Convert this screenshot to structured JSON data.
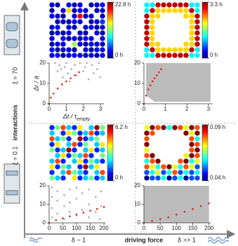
{
  "labels": {
    "y_axis": "interactions",
    "top": "ξ = 70",
    "bottom": "ξ = 0.1",
    "x_left": "δ ~ 1",
    "x_axis": "driving force",
    "x_right": "δ >> 1"
  },
  "chart_data": [
    {
      "type": "heatmap",
      "colormap": "jet",
      "clim": [
        0,
        22.8
      ],
      "cticks": [
        {
          "value": 0,
          "label": "0 h"
        },
        {
          "value": 22.8,
          "label": "22.8 h"
        }
      ],
      "values": [
        [
          2,
          1,
          null,
          3,
          1,
          2,
          null,
          1,
          2,
          3
        ],
        [
          1,
          null,
          2,
          15,
          1,
          3,
          2,
          null,
          1,
          2
        ],
        [
          3,
          2,
          1,
          null,
          2,
          20,
          1,
          2,
          null,
          1
        ],
        [
          null,
          1,
          2,
          1,
          3,
          2,
          null,
          1,
          2,
          4
        ],
        [
          2,
          3,
          null,
          2,
          1,
          null,
          2,
          3,
          1,
          2
        ],
        [
          1,
          2,
          1,
          3,
          null,
          2,
          1,
          null,
          2,
          1
        ],
        [
          2,
          null,
          3,
          1,
          2,
          1,
          3,
          2,
          null,
          2
        ],
        [
          1,
          2,
          2,
          null,
          12,
          2,
          1,
          3,
          2,
          1
        ],
        [
          3,
          1,
          2,
          2,
          1,
          null,
          2,
          1,
          3,
          2
        ],
        [
          2,
          3,
          1,
          2,
          3,
          2,
          1,
          2,
          1,
          3
        ]
      ]
    },
    {
      "type": "scatter",
      "xlim": [
        0,
        3.2
      ],
      "ylim": [
        0,
        20
      ],
      "xticks": [
        0,
        1,
        2,
        3
      ],
      "yticks": [
        0,
        10,
        20
      ],
      "y_label": "Δr / a",
      "x_label": "Δt / τ",
      "x_label_sub": "empty",
      "series": [
        {
          "kind": "points",
          "color": "#aaaaaa",
          "x": [
            0.35,
            0.5,
            0.6,
            0.8,
            0.9,
            1.0,
            1.1,
            1.3,
            1.5,
            1.6,
            1.8,
            2.0,
            2.1,
            2.3,
            2.5,
            2.6,
            2.8,
            2.9,
            3.0,
            1.2,
            2.2,
            0.7
          ],
          "values": [
            20,
            16,
            19,
            13,
            18,
            20,
            15,
            17,
            19,
            14,
            20,
            16,
            18,
            12,
            19,
            15,
            17,
            20,
            13,
            11,
            20,
            17
          ]
        },
        {
          "kind": "points",
          "color": "#e0201b",
          "x": [
            0,
            0.1,
            0.25,
            0.5,
            0.75,
            1,
            1.25,
            1.5,
            1.75
          ],
          "values": [
            0,
            3,
            5,
            7.5,
            9.5,
            11,
            12.5,
            14,
            15.5
          ]
        }
      ]
    },
    {
      "type": "heatmap",
      "colormap": "jet",
      "clim": [
        0,
        3.3
      ],
      "cticks": [
        {
          "value": 0,
          "label": "0 h"
        },
        {
          "value": 3.3,
          "label": "3.3 h"
        }
      ],
      "values": [
        [
          1.2,
          1.2,
          3.1,
          3.1,
          3.1,
          3.1,
          3.1,
          3.1,
          1.2,
          1.2
        ],
        [
          1.2,
          3.1,
          2.2,
          2.2,
          2.2,
          2.2,
          2.2,
          2.2,
          3.1,
          1.2
        ],
        [
          3.1,
          2.2,
          2.2,
          null,
          null,
          null,
          null,
          2.2,
          2.2,
          3.1
        ],
        [
          3.1,
          2.2,
          null,
          null,
          null,
          null,
          null,
          null,
          2.2,
          3.1
        ],
        [
          3.1,
          2.2,
          null,
          null,
          null,
          null,
          null,
          null,
          2.2,
          3.1
        ],
        [
          3.1,
          2.2,
          null,
          null,
          null,
          null,
          null,
          null,
          2.2,
          3.1
        ],
        [
          3.1,
          2.2,
          null,
          null,
          null,
          null,
          null,
          null,
          2.2,
          3.1
        ],
        [
          3.1,
          2.2,
          2.2,
          null,
          null,
          null,
          null,
          2.2,
          2.2,
          3.1
        ],
        [
          1.2,
          3.1,
          2.2,
          2.2,
          2.2,
          2.2,
          2.2,
          2.2,
          3.1,
          1.2
        ],
        [
          1.2,
          1.2,
          3.1,
          3.1,
          3.1,
          3.1,
          3.1,
          3.1,
          1.2,
          1.2
        ]
      ]
    },
    {
      "type": "scatter",
      "xlim": [
        0,
        3.2
      ],
      "ylim": [
        0,
        20
      ],
      "xticks": [
        0,
        1,
        2,
        3
      ],
      "yticks": [
        0,
        10,
        20
      ],
      "series": [
        {
          "kind": "area",
          "color": "#bbbbbb",
          "x": [
            0.1,
            0.5,
            3.1
          ],
          "values": [
            20,
            20,
            20
          ],
          "base": [
            4,
            1,
            1
          ]
        },
        {
          "kind": "points",
          "color": "#e0201b",
          "x": [
            0,
            0.1,
            0.2,
            0.3,
            0.4,
            0.5,
            0.6,
            0.7,
            0.8
          ],
          "values": [
            0,
            4,
            7,
            9,
            11,
            12.5,
            14,
            15.5,
            17
          ]
        }
      ]
    },
    {
      "type": "heatmap",
      "colormap": "jet",
      "clim": [
        0,
        6.2
      ],
      "cticks": [
        {
          "value": 0,
          "label": "0 h"
        },
        {
          "value": 6.2,
          "label": "6.2 h"
        }
      ],
      "values": [
        [
          1,
          3,
          5,
          2,
          1,
          4,
          null,
          2,
          6,
          3
        ],
        [
          2,
          null,
          1,
          4,
          3,
          1,
          2,
          5,
          1,
          2
        ],
        [
          5,
          2,
          3,
          1,
          null,
          6,
          1,
          2,
          3,
          null
        ],
        [
          1,
          4,
          null,
          2,
          5,
          1,
          3,
          null,
          2,
          4
        ],
        [
          3,
          1,
          2,
          6,
          1,
          null,
          2,
          4,
          1,
          2
        ],
        [
          null,
          2,
          4,
          1,
          3,
          2,
          5,
          1,
          null,
          3
        ],
        [
          2,
          5,
          1,
          null,
          2,
          4,
          1,
          3,
          2,
          1
        ],
        [
          4,
          1,
          3,
          2,
          null,
          1,
          6,
          2,
          4,
          null
        ],
        [
          1,
          null,
          2,
          5,
          3,
          2,
          1,
          null,
          2,
          5
        ],
        [
          3,
          2,
          1,
          null,
          4,
          1,
          2,
          3,
          1,
          2
        ]
      ]
    },
    {
      "type": "scatter",
      "xlim": [
        0,
        205
      ],
      "ylim": [
        0,
        20
      ],
      "xticks": [
        0,
        50,
        100,
        150,
        200
      ],
      "yticks": [
        0,
        10,
        20
      ],
      "series": [
        {
          "kind": "points",
          "color": "#aaaaaa",
          "x": [
            10,
            10,
            10,
            10,
            30,
            30,
            30,
            55,
            55,
            55,
            75,
            75,
            75,
            100,
            100,
            100,
            120,
            120,
            145,
            145,
            145,
            170,
            170,
            190,
            190,
            185
          ],
          "values": [
            3,
            8,
            14,
            19,
            5,
            12,
            17,
            2,
            9,
            15,
            6,
            11,
            18,
            4,
            13,
            19,
            7,
            16,
            3,
            10,
            18,
            6,
            14,
            9,
            17,
            2
          ]
        },
        {
          "kind": "points",
          "color": "#e0201b",
          "x": [
            0,
            25,
            50,
            75,
            100,
            125,
            150,
            175,
            200
          ],
          "values": [
            0,
            1.5,
            2.5,
            3.5,
            4.5,
            5.5,
            6.5,
            7.5,
            8.5
          ]
        }
      ]
    },
    {
      "type": "heatmap",
      "colormap": "jet",
      "clim": [
        0.04,
        0.09
      ],
      "cticks": [
        {
          "value": 0.04,
          "label": "0.04 h"
        },
        {
          "value": 0.09,
          "label": "0.09 h"
        }
      ],
      "values": [
        [
          0.07,
          0.09,
          0.08,
          0.09,
          0.06,
          0.09,
          0.08,
          0.07,
          0.09,
          0.08
        ],
        [
          0.09,
          0.08,
          null,
          null,
          null,
          null,
          null,
          0.09,
          0.07,
          0.09
        ],
        [
          0.08,
          null,
          null,
          null,
          null,
          null,
          null,
          null,
          0.08,
          0.06
        ],
        [
          0.09,
          null,
          null,
          null,
          null,
          null,
          null,
          null,
          0.09,
          0.08
        ],
        [
          0.07,
          null,
          null,
          null,
          null,
          null,
          null,
          null,
          0.08,
          0.09
        ],
        [
          0.08,
          0.09,
          null,
          null,
          null,
          null,
          null,
          0.07,
          0.09,
          0.08
        ],
        [
          0.06,
          0.08,
          0.09,
          null,
          null,
          null,
          0.08,
          0.09,
          0.06,
          0.07
        ],
        [
          0.08,
          0.07,
          0.06,
          0.08,
          0.09,
          0.07,
          0.06,
          0.08,
          0.07,
          0.05
        ],
        [
          0.05,
          0.06,
          0.07,
          0.05,
          0.06,
          0.08,
          0.05,
          0.06,
          0.05,
          0.06
        ],
        [
          0.04,
          0.05,
          0.05,
          0.06,
          0.04,
          0.05,
          0.06,
          0.04,
          0.05,
          0.05
        ]
      ]
    },
    {
      "type": "scatter",
      "xlim": [
        0,
        205
      ],
      "ylim": [
        0,
        20
      ],
      "xticks": [
        0,
        50,
        100,
        150,
        200
      ],
      "yticks": [
        0,
        10,
        20
      ],
      "series": [
        {
          "kind": "area",
          "color": "#bbbbbb",
          "x": [
            0,
            200
          ],
          "values": [
            20,
            20
          ],
          "base": [
            0,
            0
          ]
        },
        {
          "kind": "points",
          "color": "#e0201b",
          "x": [
            0,
            25,
            50,
            75,
            100,
            125,
            150,
            175,
            200
          ],
          "values": [
            0,
            1,
            2,
            3,
            4.5,
            6,
            7.5,
            9,
            10.5
          ]
        }
      ]
    }
  ]
}
